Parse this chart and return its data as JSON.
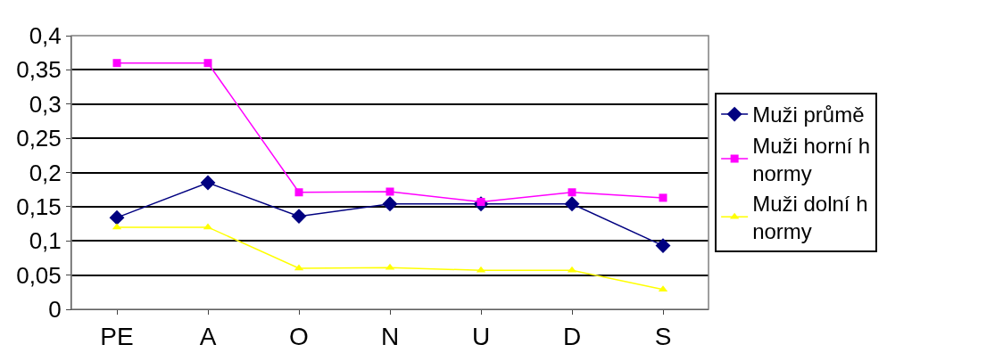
{
  "chart_data": {
    "type": "line",
    "categories": [
      "PE",
      "A",
      "O",
      "N",
      "U",
      "D",
      "S"
    ],
    "series": [
      {
        "name": "Muži průmě",
        "color": "#000080",
        "marker": "diamond",
        "values": [
          0.134,
          0.185,
          0.136,
          0.154,
          0.154,
          0.154,
          0.093
        ]
      },
      {
        "name": "Muži horní h\nnormy",
        "color": "#ff00ff",
        "marker": "square",
        "values": [
          0.36,
          0.36,
          0.171,
          0.172,
          0.157,
          0.171,
          0.163
        ]
      },
      {
        "name": "Muži dolní h\nnormy",
        "color": "#ffff00",
        "marker": "triangle",
        "values": [
          0.12,
          0.12,
          0.06,
          0.061,
          0.057,
          0.057,
          0.029
        ]
      }
    ],
    "ylim": [
      0,
      0.4
    ],
    "yticks": [
      0,
      {
        "value": 0.05,
        "label": "0,05"
      },
      {
        "value": 0.1,
        "label": "0,1"
      },
      {
        "value": 0.15,
        "label": "0,15"
      },
      {
        "value": 0.2,
        "label": "0,2"
      },
      {
        "value": 0.25,
        "label": "0,25"
      },
      {
        "value": 0.3,
        "label": "0,3"
      },
      {
        "value": 0.35,
        "label": "0,35"
      },
      {
        "value": 0.4,
        "label": "0,4"
      }
    ],
    "grid": "y",
    "legend": "right",
    "line_style": "solid"
  }
}
